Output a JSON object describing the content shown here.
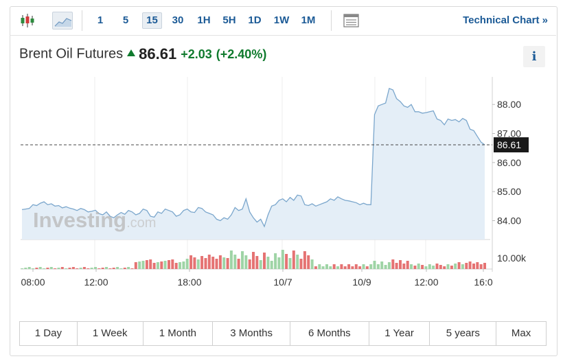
{
  "toolbar": {
    "intervals": [
      "1",
      "5",
      "15",
      "30",
      "1H",
      "5H",
      "1D",
      "1W",
      "1M"
    ],
    "active_interval": "15",
    "technical_chart_label": "Technical Chart »"
  },
  "header": {
    "instrument": "Brent Oil Futures",
    "price": "86.61",
    "change": "+2.03",
    "change_pct": "(+2.40%)",
    "info_label": "i"
  },
  "chart_data": {
    "type": "area",
    "watermark": "Investing",
    "watermark_suffix": ".com",
    "y_ticks": [
      "88.00",
      "87.00",
      "86.00",
      "85.00",
      "84.00"
    ],
    "ylim": [
      83.35,
      88.95
    ],
    "current_price_label": "86.61",
    "current_price": 86.61,
    "volume_tick_label": "10.00k",
    "x_tick_labels": [
      "08:00",
      "12:00",
      "18:00",
      "10/7",
      "10/9",
      "12:00",
      "16:0"
    ],
    "price_series": [
      84.38,
      84.4,
      84.42,
      84.55,
      84.52,
      84.6,
      84.65,
      84.55,
      84.58,
      84.5,
      84.52,
      84.44,
      84.48,
      84.43,
      84.4,
      84.35,
      84.42,
      84.38,
      84.3,
      84.32,
      84.36,
      84.24,
      84.2,
      84.3,
      84.15,
      84.1,
      84.2,
      84.28,
      84.22,
      84.35,
      84.3,
      84.2,
      84.25,
      84.4,
      84.35,
      84.15,
      84.12,
      84.3,
      84.25,
      84.4,
      84.35,
      84.3,
      84.15,
      84.2,
      84.35,
      84.4,
      84.3,
      84.28,
      84.45,
      84.42,
      84.3,
      84.25,
      84.2,
      84.05,
      84.0,
      84.1,
      84.05,
      84.2,
      84.45,
      84.35,
      84.4,
      84.75,
      84.3,
      84.1,
      83.95,
      84.05,
      83.8,
      84.2,
      84.5,
      84.55,
      84.7,
      84.75,
      84.65,
      84.8,
      84.7,
      84.88,
      84.85,
      84.55,
      84.52,
      84.58,
      84.5,
      84.55,
      84.6,
      84.65,
      84.75,
      84.7,
      84.82,
      84.75,
      84.7,
      84.68,
      84.65,
      84.62,
      84.55,
      84.6,
      84.55,
      84.55,
      87.65,
      87.95,
      88.0,
      88.05,
      88.55,
      88.5,
      88.2,
      88.1,
      87.95,
      87.9,
      88.0,
      87.75,
      87.75,
      87.7,
      87.72,
      87.75,
      87.78,
      87.5,
      87.45,
      87.3,
      87.5,
      87.45,
      87.48,
      87.4,
      87.52,
      87.45,
      87.15,
      87.1,
      86.9,
      86.7,
      86.61
    ]
  },
  "ranges": [
    "1 Day",
    "1 Week",
    "1 Month",
    "3 Months",
    "6 Months",
    "1 Year",
    "5 years",
    "Max"
  ]
}
